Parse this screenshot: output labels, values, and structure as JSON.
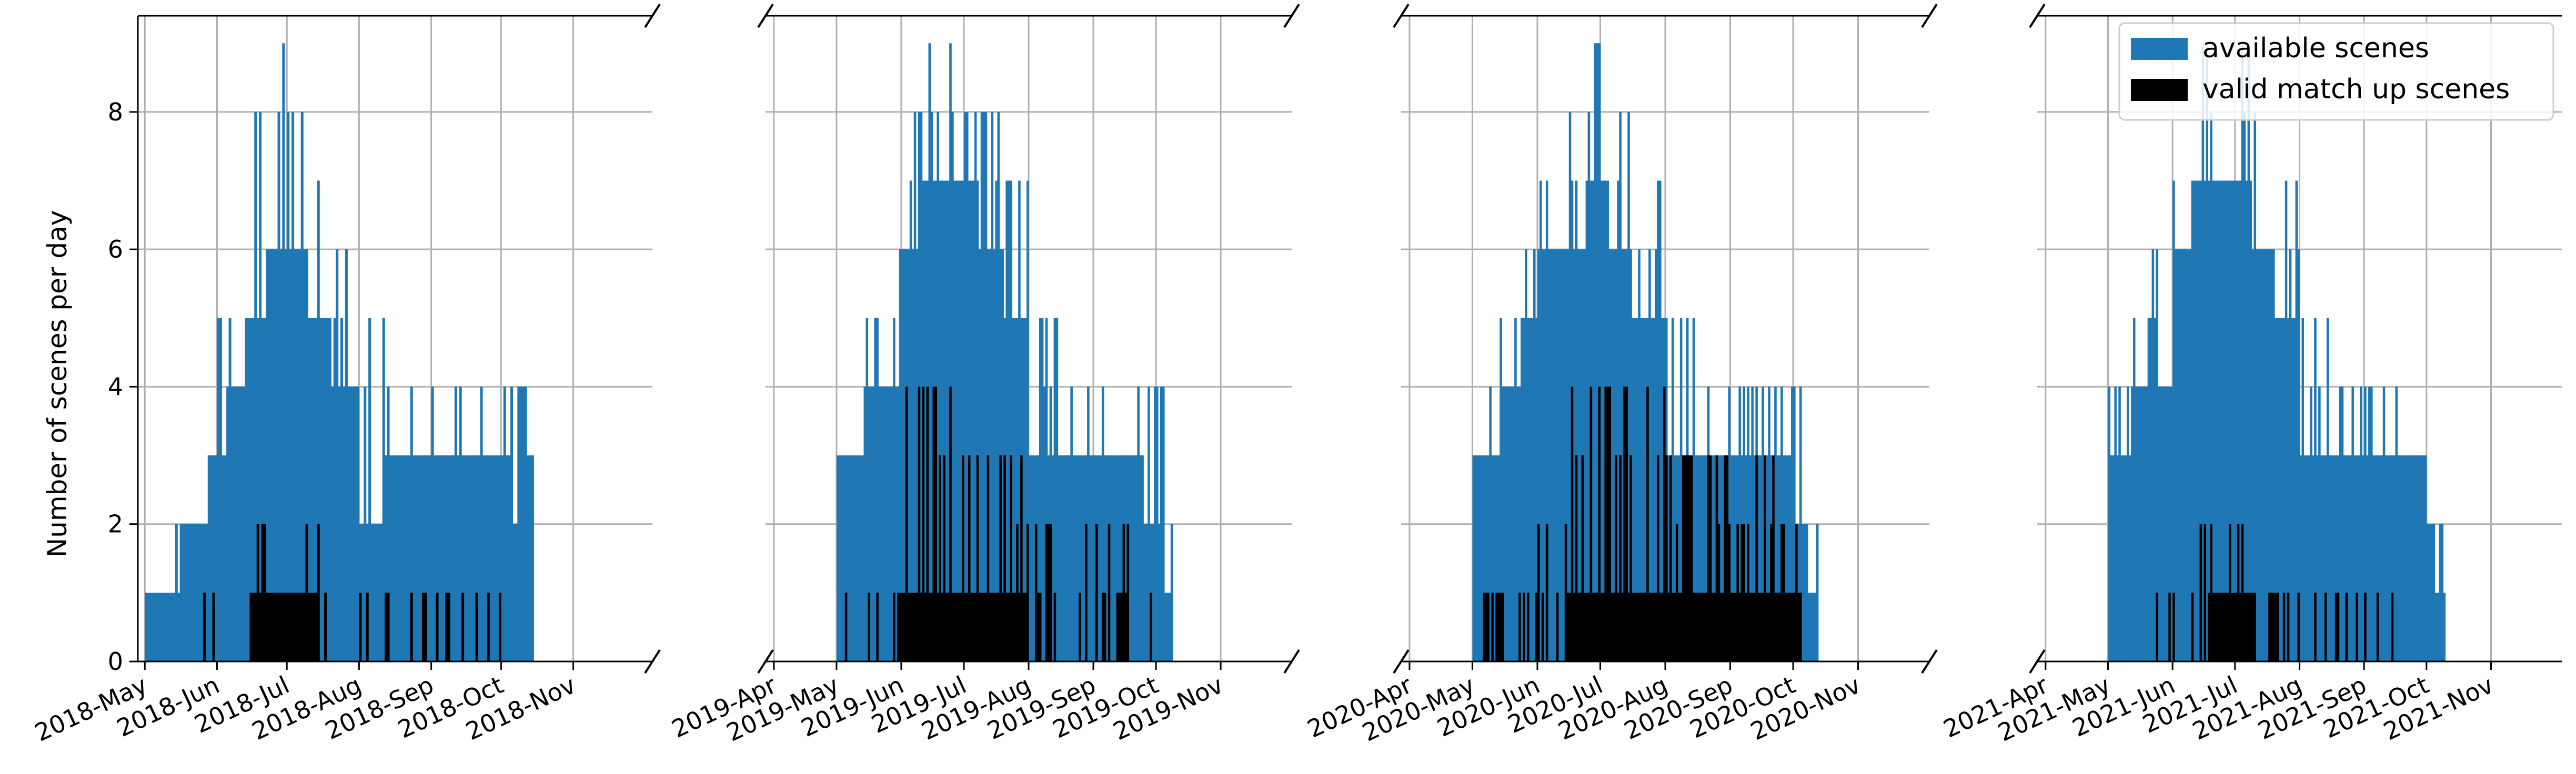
{
  "chart_data": {
    "type": "bar",
    "layout": "broken-x-axis, 4 panels sharing y-axis",
    "ylabel": "Number of scenes per day",
    "ylim": [
      0,
      9.4
    ],
    "yticks": [
      0,
      2,
      4,
      6,
      8
    ],
    "grid": true,
    "legend_position": "top-right",
    "series": [
      {
        "name": "available scenes",
        "color": "#1f77b4"
      },
      {
        "name": "valid match up scenes",
        "color": "#000000"
      }
    ],
    "panels": [
      {
        "year": 2018,
        "xlim": [
          "2018-04-28",
          "2018-12-05"
        ],
        "tick_labels": [
          "2018-May",
          "2018-Jun",
          "2018-Jul",
          "2018-Aug",
          "2018-Sep",
          "2018-Oct",
          "2018-Nov"
        ],
        "tick_dates": [
          "2018-05-01",
          "2018-06-01",
          "2018-07-01",
          "2018-08-01",
          "2018-09-01",
          "2018-10-01",
          "2018-11-01"
        ],
        "available_profile": [
          [
            "2018-05-01",
            1,
            1
          ],
          [
            "2018-05-08",
            2,
            1
          ],
          [
            "2018-05-16",
            2,
            2
          ],
          [
            "2018-05-22",
            3,
            2
          ],
          [
            "2018-05-28",
            5,
            3
          ],
          [
            "2018-06-05",
            6,
            4
          ],
          [
            "2018-06-13",
            8,
            5
          ],
          [
            "2018-06-22",
            9,
            6
          ],
          [
            "2018-07-01",
            8,
            6
          ],
          [
            "2018-07-10",
            7,
            5
          ],
          [
            "2018-07-20",
            6,
            4
          ],
          [
            "2018-08-01",
            5,
            2
          ],
          [
            "2018-08-12",
            4,
            3
          ],
          [
            "2018-09-01",
            4,
            3
          ],
          [
            "2018-09-20",
            4,
            3
          ],
          [
            "2018-10-05",
            4,
            2
          ],
          [
            "2018-10-10",
            4,
            3
          ],
          [
            "2018-10-15",
            0,
            0
          ]
        ],
        "valid_profile": [
          [
            "2018-05-10",
            0,
            0
          ],
          [
            "2018-05-25",
            1,
            0
          ],
          [
            "2018-06-07",
            1,
            0
          ],
          [
            "2018-06-15",
            2,
            1
          ],
          [
            "2018-06-30",
            2,
            1
          ],
          [
            "2018-07-15",
            1,
            0
          ],
          [
            "2018-08-20",
            1,
            0
          ],
          [
            "2018-10-01",
            1,
            0
          ],
          [
            "2018-10-02",
            0,
            0
          ]
        ]
      },
      {
        "year": 2019,
        "xlim": [
          "2019-03-28",
          "2019-12-05"
        ],
        "tick_labels": [
          "2019-Apr",
          "2019-May",
          "2019-Jun",
          "2019-Jul",
          "2019-Aug",
          "2019-Sep",
          "2019-Oct",
          "2019-Nov"
        ],
        "tick_dates": [
          "2019-04-01",
          "2019-05-01",
          "2019-06-01",
          "2019-07-01",
          "2019-08-01",
          "2019-09-01",
          "2019-10-01",
          "2019-11-01"
        ],
        "available_profile": [
          [
            "2019-05-01",
            4,
            3
          ],
          [
            "2019-05-15",
            5,
            4
          ],
          [
            "2019-05-25",
            6,
            4
          ],
          [
            "2019-06-01",
            8,
            6
          ],
          [
            "2019-06-12",
            9,
            7
          ],
          [
            "2019-06-25",
            8,
            7
          ],
          [
            "2019-07-08",
            8,
            6
          ],
          [
            "2019-07-20",
            7,
            5
          ],
          [
            "2019-08-01",
            5,
            3
          ],
          [
            "2019-08-15",
            4,
            3
          ],
          [
            "2019-09-10",
            4,
            3
          ],
          [
            "2019-09-25",
            4,
            2
          ],
          [
            "2019-10-05",
            2,
            1
          ],
          [
            "2019-10-09",
            0,
            0
          ]
        ],
        "valid_profile": [
          [
            "2019-05-01",
            1,
            0
          ],
          [
            "2019-05-31",
            1,
            0
          ],
          [
            "2019-06-01",
            4,
            1
          ],
          [
            "2019-07-01",
            3,
            1
          ],
          [
            "2019-08-01",
            2,
            0
          ],
          [
            "2019-09-01",
            2,
            0
          ],
          [
            "2019-09-20",
            1,
            0
          ],
          [
            "2019-10-01",
            0,
            0
          ]
        ]
      },
      {
        "year": 2020,
        "xlim": [
          "2020-03-28",
          "2020-12-05"
        ],
        "tick_labels": [
          "2020-Apr",
          "2020-May",
          "2020-Jun",
          "2020-Jul",
          "2020-Aug",
          "2020-Sep",
          "2020-Oct",
          "2020-Nov"
        ],
        "tick_dates": [
          "2020-04-01",
          "2020-05-01",
          "2020-06-01",
          "2020-07-01",
          "2020-08-01",
          "2020-09-01",
          "2020-10-01",
          "2020-11-01"
        ],
        "available_profile": [
          [
            "2020-05-01",
            4,
            3
          ],
          [
            "2020-05-14",
            5,
            4
          ],
          [
            "2020-05-24",
            6,
            5
          ],
          [
            "2020-06-01",
            7,
            6
          ],
          [
            "2020-06-12",
            8,
            6
          ],
          [
            "2020-06-25",
            9,
            7
          ],
          [
            "2020-07-05",
            8,
            6
          ],
          [
            "2020-07-15",
            7,
            5
          ],
          [
            "2020-08-01",
            5,
            3
          ],
          [
            "2020-08-15",
            4,
            3
          ],
          [
            "2020-09-10",
            4,
            3
          ],
          [
            "2020-10-01",
            4,
            2
          ],
          [
            "2020-10-08",
            2,
            1
          ],
          [
            "2020-10-13",
            0,
            0
          ]
        ],
        "valid_profile": [
          [
            "2020-05-05",
            1,
            0
          ],
          [
            "2020-06-01",
            2,
            0
          ],
          [
            "2020-06-15",
            4,
            1
          ],
          [
            "2020-07-10",
            4,
            1
          ],
          [
            "2020-08-01",
            3,
            1
          ],
          [
            "2020-09-15",
            3,
            1
          ],
          [
            "2020-10-05",
            0,
            0
          ]
        ]
      },
      {
        "year": 2021,
        "xlim": [
          "2021-03-28",
          "2021-12-05"
        ],
        "tick_labels": [
          "2021-Apr",
          "2021-May",
          "2021-Jun",
          "2021-Jul",
          "2021-Aug",
          "2021-Sep",
          "2021-Oct",
          "2021-Nov"
        ],
        "tick_dates": [
          "2021-04-01",
          "2021-05-01",
          "2021-06-01",
          "2021-07-01",
          "2021-08-01",
          "2021-09-01",
          "2021-10-01",
          "2021-11-01"
        ],
        "available_profile": [
          [
            "2021-05-01",
            4,
            3
          ],
          [
            "2021-05-12",
            5,
            4
          ],
          [
            "2021-05-22",
            6,
            4
          ],
          [
            "2021-06-01",
            7,
            6
          ],
          [
            "2021-06-12",
            9,
            7
          ],
          [
            "2021-06-25",
            9,
            7
          ],
          [
            "2021-07-08",
            8,
            6
          ],
          [
            "2021-07-20",
            7,
            5
          ],
          [
            "2021-08-01",
            5,
            3
          ],
          [
            "2021-08-15",
            4,
            3
          ],
          [
            "2021-09-15",
            4,
            3
          ],
          [
            "2021-10-01",
            4,
            2
          ],
          [
            "2021-10-05",
            2,
            1
          ],
          [
            "2021-10-10",
            0,
            0
          ]
        ],
        "valid_profile": [
          [
            "2021-05-20",
            1,
            0
          ],
          [
            "2021-06-05",
            2,
            0
          ],
          [
            "2021-06-20",
            2,
            1
          ],
          [
            "2021-07-10",
            1,
            0
          ],
          [
            "2021-08-15",
            1,
            0
          ],
          [
            "2021-09-20",
            1,
            0
          ],
          [
            "2021-09-21",
            0,
            0
          ]
        ]
      }
    ]
  }
}
